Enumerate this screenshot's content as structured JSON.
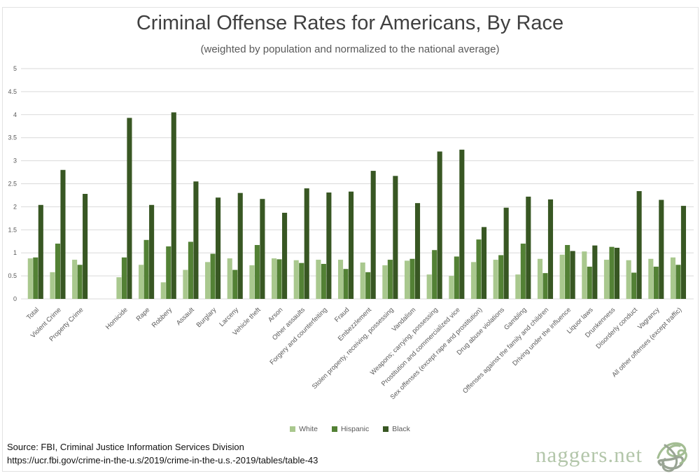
{
  "title": "Criminal Offense Rates for Americans, By Race",
  "subtitle": "(weighted by population and normalized to the national average)",
  "chart_data": {
    "type": "bar",
    "title": "Criminal Offense Rates for Americans, By Race",
    "subtitle": "(weighted by population and normalized to the national average)",
    "xlabel": "",
    "ylabel": "",
    "ylim": [
      0,
      5
    ],
    "ytick_step": 0.5,
    "grid": true,
    "legend_position": "bottom",
    "gap_after_index": 2,
    "categories": [
      "Total",
      "Violent Crime",
      "Property Crime",
      "Homicide",
      "Rape",
      "Robbery",
      "Assault",
      "Burglary",
      "Larceny",
      "Vehicle theft",
      "Arson",
      "Other assaults",
      "Forgery and counterfeiting",
      "Fraud",
      "Embezzlement",
      "Stolen property, receiving, possessing",
      "Vandalism",
      "Weapons; carrying, possessing",
      "Prostitution and commercialized vice",
      "Sex offenses (except rape and prostitution)",
      "Drug abuse violations",
      "Gambling",
      "Offenses against the family and children",
      "Driving under the influence",
      "Liquor laws",
      "Drunkenness",
      "Disorderly conduct",
      "Vagrancy",
      "All other offenses (except traffic)"
    ],
    "series": [
      {
        "name": "White",
        "color": "#a9c88e",
        "values": [
          0.88,
          0.58,
          0.85,
          0.47,
          0.74,
          0.36,
          0.63,
          0.8,
          0.88,
          0.73,
          0.88,
          0.84,
          0.85,
          0.85,
          0.79,
          0.73,
          0.83,
          0.53,
          0.5,
          0.8,
          0.85,
          0.53,
          0.87,
          0.96,
          1.03,
          0.85,
          0.84,
          0.87,
          0.9
        ]
      },
      {
        "name": "Hispanic",
        "color": "#538135",
        "values": [
          0.9,
          1.2,
          0.74,
          0.9,
          1.28,
          1.14,
          1.24,
          0.98,
          0.63,
          1.17,
          0.86,
          0.78,
          0.76,
          0.65,
          0.58,
          0.85,
          0.87,
          1.06,
          0.92,
          1.29,
          0.95,
          1.2,
          0.56,
          1.17,
          0.7,
          1.13,
          0.57,
          0.7,
          0.74
        ]
      },
      {
        "name": "Black",
        "color": "#385723",
        "values": [
          2.04,
          2.8,
          2.28,
          3.93,
          2.04,
          4.05,
          2.55,
          2.2,
          2.3,
          2.17,
          1.87,
          2.4,
          2.31,
          2.33,
          2.78,
          2.67,
          2.08,
          3.2,
          3.24,
          1.56,
          1.98,
          2.22,
          2.16,
          1.04,
          1.16,
          1.11,
          2.34,
          2.15,
          2.02
        ]
      }
    ]
  },
  "footer": {
    "source_line1": "Source: FBI, Criminal Justice Information Services Division",
    "source_line2": "https://ucr.fbi.gov/crime-in-the-u.s/2019/crime-in-the-u.s.-2019/tables/table-43"
  },
  "watermark": {
    "text": "naggers.net",
    "logo": "scribble-logo"
  },
  "colors": {
    "title_text": "#404040",
    "axis_text": "#595959",
    "gridline": "#d9d9d9",
    "watermark_text": "#b3c6aa",
    "watermark_logo_green": "#a3bd93",
    "watermark_logo_gray": "#99a494"
  }
}
